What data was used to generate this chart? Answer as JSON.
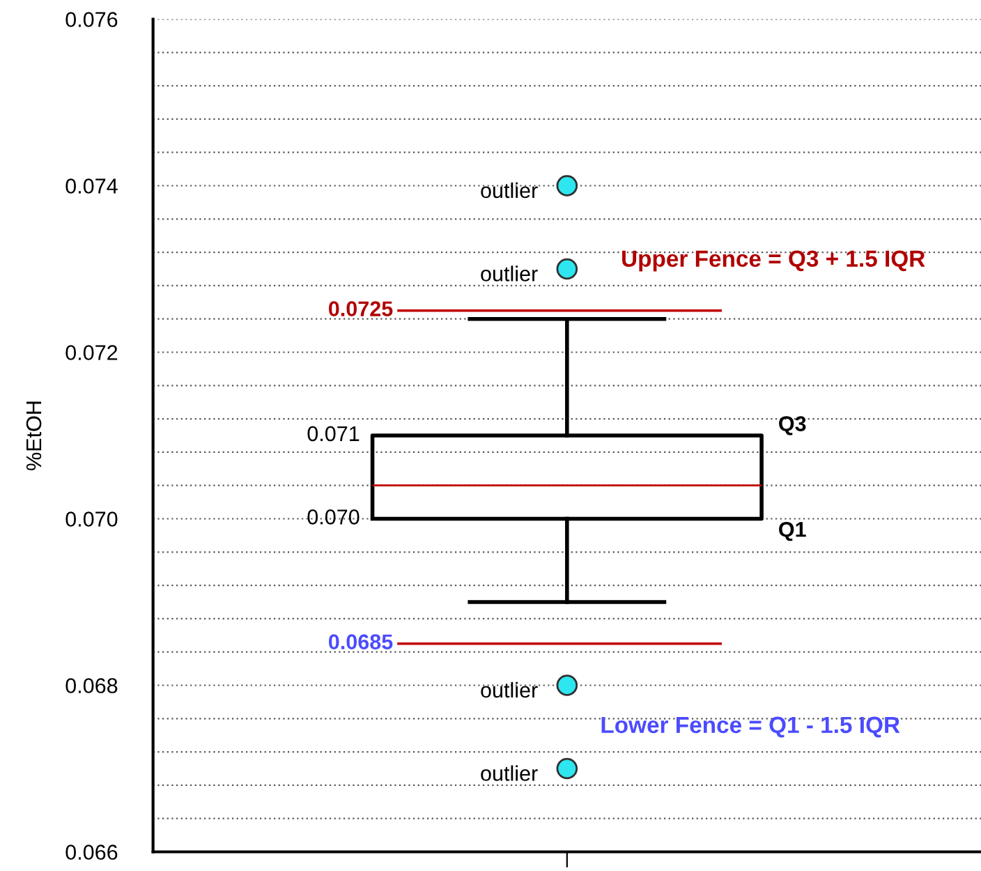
{
  "chart_data": {
    "type": "box",
    "ylabel": "%EtOH",
    "categories": [
      null
    ],
    "boxes": [
      {
        "low": 0.069,
        "q1": 0.07,
        "median": 0.0704,
        "q3": 0.071,
        "high": 0.0724,
        "outliers": [
          0.074,
          0.073,
          0.068,
          0.067
        ]
      }
    ],
    "ylim": [
      0.066,
      0.076
    ],
    "yticks": [
      0.066,
      {
        "value": 0.0664,
        "label": null
      },
      {
        "value": 0.0668,
        "label": null
      },
      {
        "value": 0.0672,
        "label": null
      },
      {
        "value": 0.0676,
        "label": null
      },
      0.068,
      {
        "value": 0.0684,
        "label": null
      },
      {
        "value": 0.0688,
        "label": null
      },
      {
        "value": 0.0692,
        "label": null
      },
      {
        "value": 0.0696,
        "label": null
      },
      {
        "value": 0.07,
        "label": "0.070"
      },
      {
        "value": 0.0704,
        "label": null
      },
      {
        "value": 0.0708,
        "label": null
      },
      {
        "value": 0.0712,
        "label": null
      },
      {
        "value": 0.0716,
        "label": null
      },
      0.072,
      {
        "value": 0.0724,
        "label": null
      },
      {
        "value": 0.0728,
        "label": null
      },
      {
        "value": 0.0732,
        "label": null
      },
      {
        "value": 0.0736,
        "label": null
      },
      0.074,
      {
        "value": 0.0744,
        "label": null
      },
      {
        "value": 0.0748,
        "label": null
      },
      {
        "value": 0.0752,
        "label": null
      },
      {
        "value": 0.0756,
        "label": null
      },
      0.076
    ],
    "grid": "y",
    "ref_lines": [
      {
        "axis": "y",
        "value": 0.0725,
        "label": "0.0725",
        "color": "#c00000"
      },
      {
        "axis": "y",
        "value": 0.0685,
        "label": "0.0685",
        "color": "#c00000"
      }
    ],
    "annotations": [
      "outlier",
      "outlier",
      "outlier",
      "outlier",
      "0.071",
      "0.070",
      "Q3",
      "Q1",
      "Upper Fence = Q3 + 1.5 IQR",
      "Lower Fence = Q1 - 1.5 IQR"
    ]
  }
}
